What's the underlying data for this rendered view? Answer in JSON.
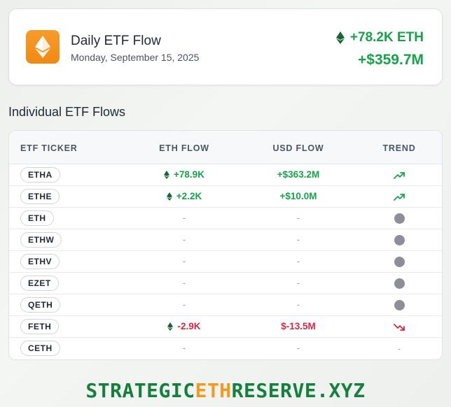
{
  "summary": {
    "title": "Daily ETF Flow",
    "date": "Monday, September 15, 2025",
    "eth_flow": "+78.2K ETH",
    "usd_flow": "+$359.7M",
    "logo_icon": "ethereum-icon",
    "positive_color": "#16a34a"
  },
  "section": {
    "title": "Individual ETF Flows"
  },
  "table": {
    "headers": {
      "ticker": "ETF TICKER",
      "eth": "ETH FLOW",
      "usd": "USD FLOW",
      "trend": "TREND"
    },
    "rows": [
      {
        "ticker": "ETHA",
        "eth": "+78.9K",
        "usd": "+$363.2M",
        "trend": "up"
      },
      {
        "ticker": "ETHE",
        "eth": "+2.2K",
        "usd": "+$10.0M",
        "trend": "up"
      },
      {
        "ticker": "ETH",
        "eth": "-",
        "usd": "-",
        "trend": "neutral"
      },
      {
        "ticker": "ETHW",
        "eth": "-",
        "usd": "-",
        "trend": "neutral"
      },
      {
        "ticker": "ETHV",
        "eth": "-",
        "usd": "-",
        "trend": "neutral"
      },
      {
        "ticker": "EZET",
        "eth": "-",
        "usd": "-",
        "trend": "neutral"
      },
      {
        "ticker": "QETH",
        "eth": "-",
        "usd": "-",
        "trend": "neutral"
      },
      {
        "ticker": "FETH",
        "eth": "-2.9K",
        "usd": "$-13.5M",
        "trend": "down"
      },
      {
        "ticker": "CETH",
        "eth": "-",
        "usd": "-",
        "trend": "none"
      }
    ],
    "negative_color": "#dc2646"
  },
  "footer": {
    "part1": "STRATEGIC",
    "part2": "ETH",
    "part3": "RESERVE.XYZ"
  }
}
